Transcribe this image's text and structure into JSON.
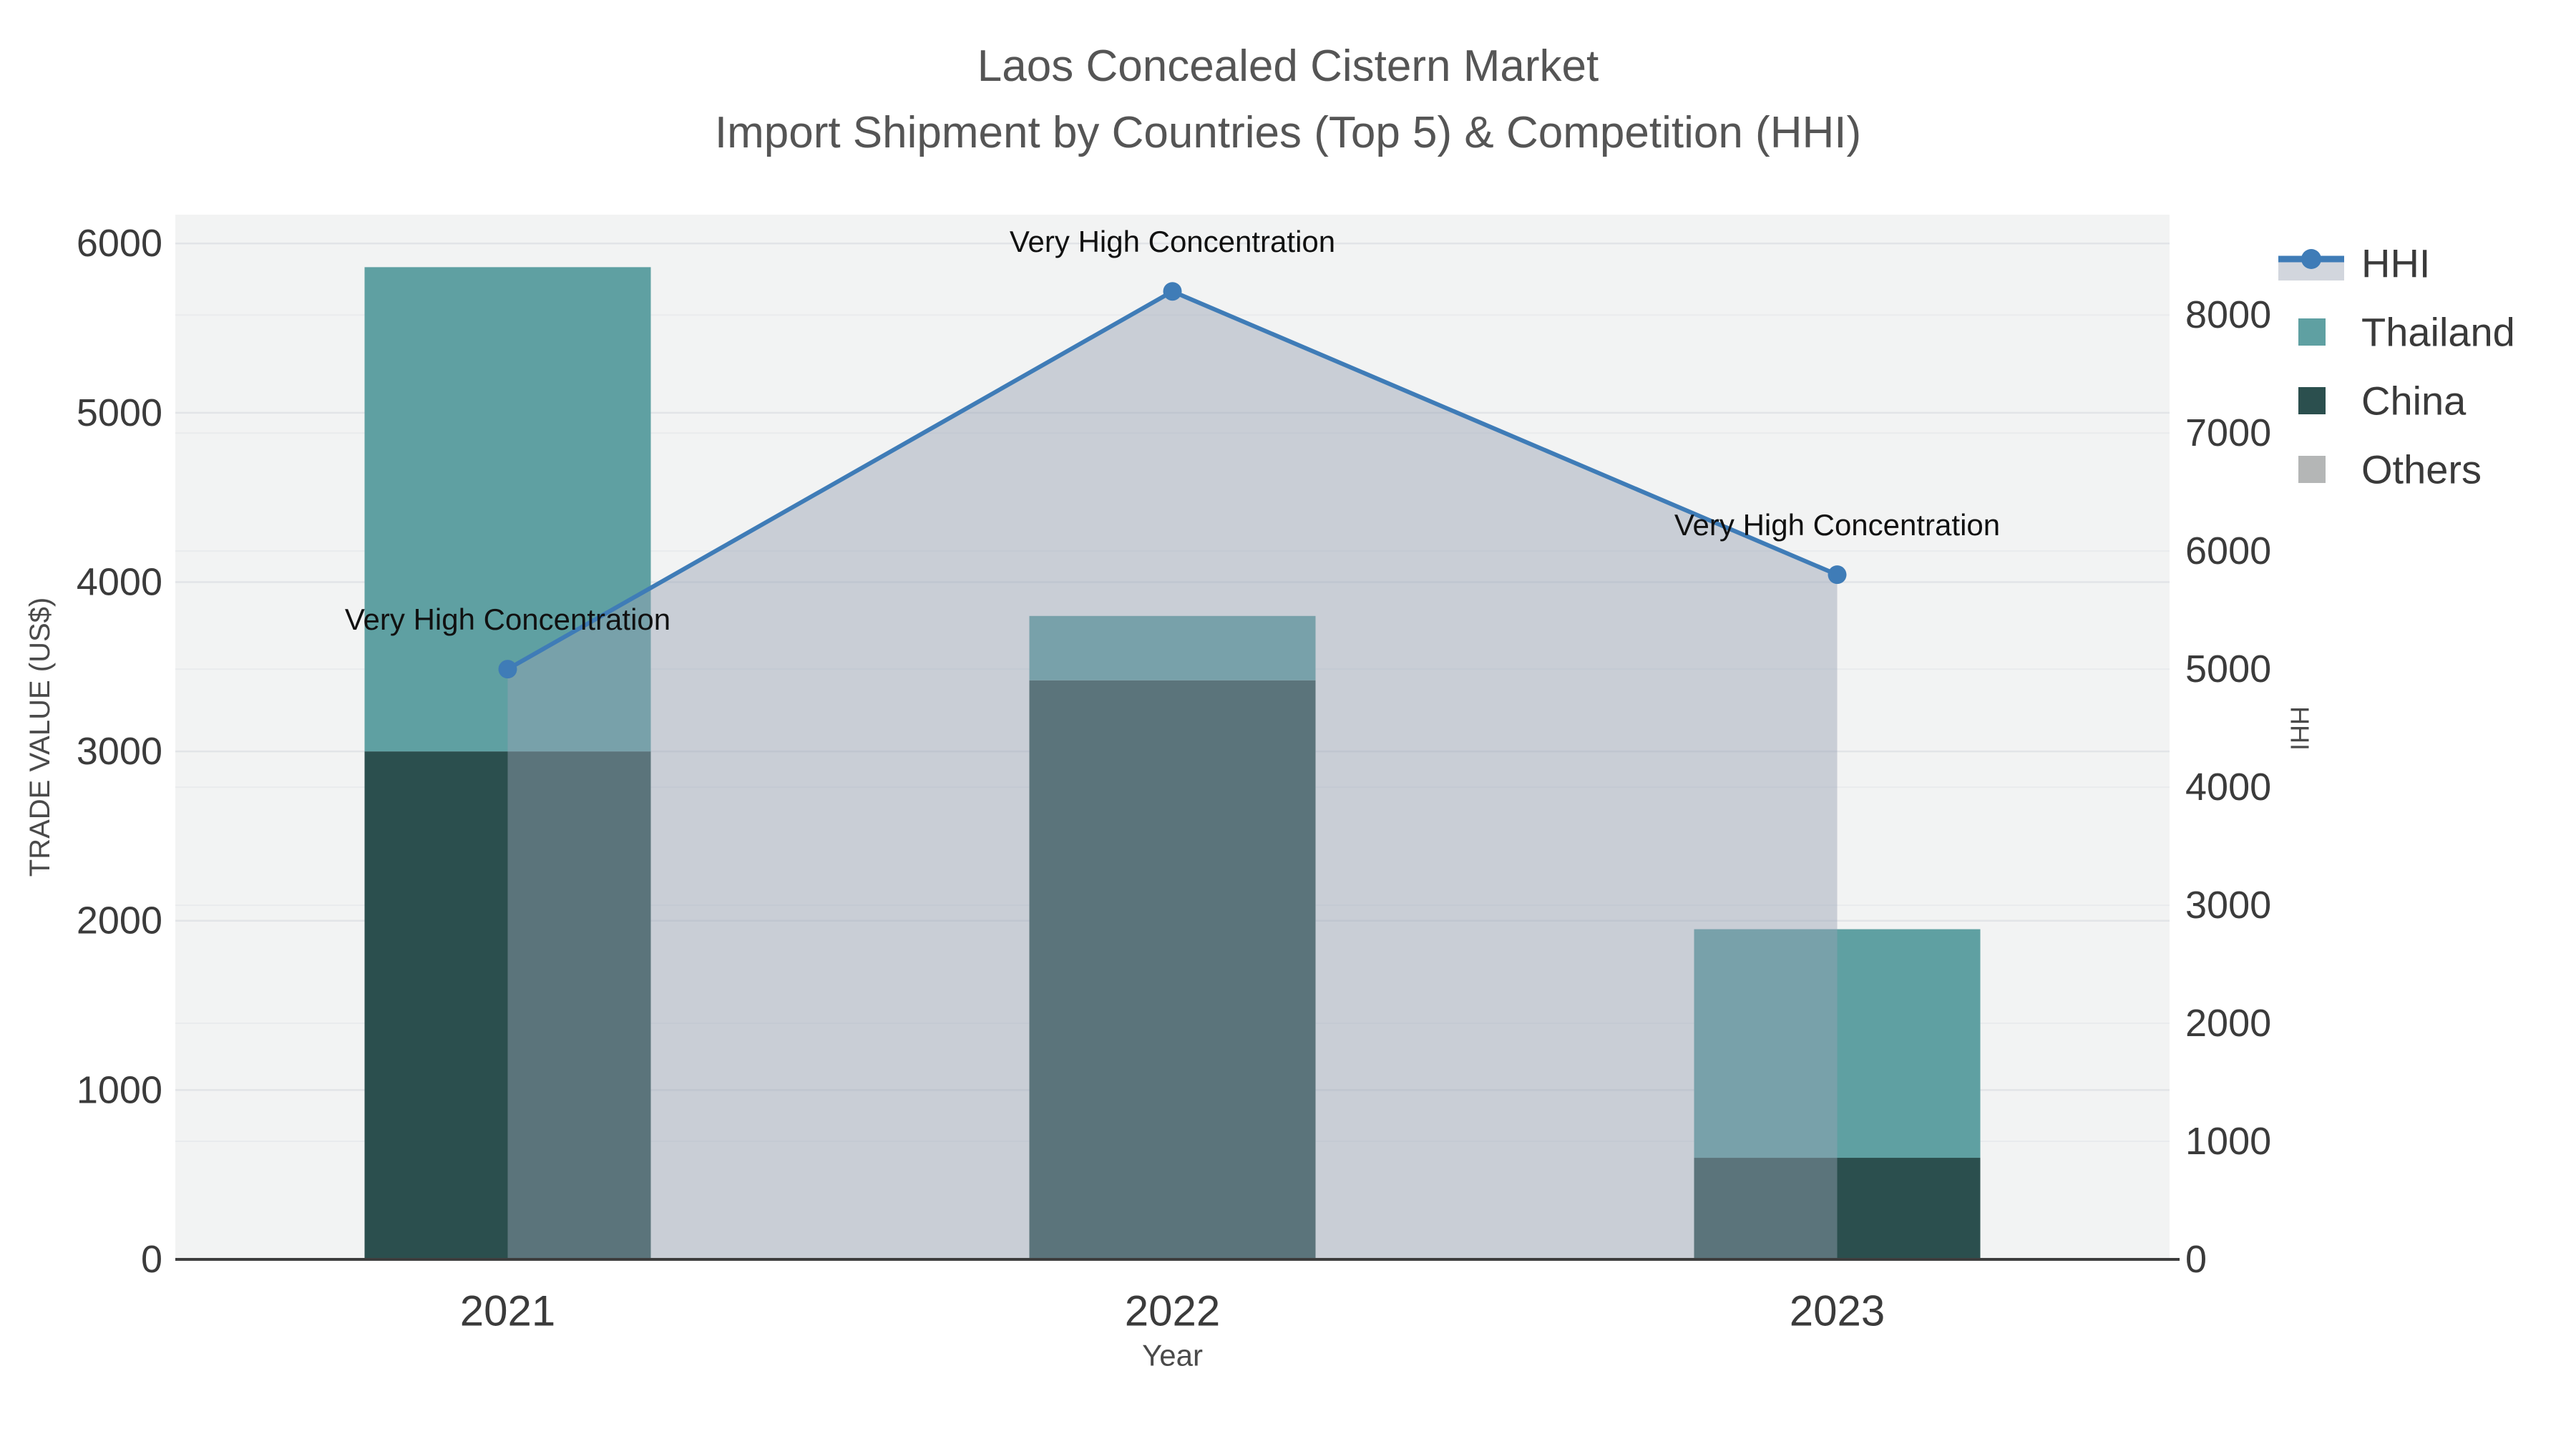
{
  "title": {
    "line1": "Laos Concealed Cistern Market",
    "line2": "Import Shipment by Countries (Top 5) & Competition (HHI)"
  },
  "chart_data": {
    "type": "bar",
    "subtype": "stacked-bars-with-secondary-axis-line-area",
    "categories": [
      "2021",
      "2022",
      "2023"
    ],
    "xlabel": "Year",
    "left_axis": {
      "label": "TRADE VALUE (US$)",
      "min": 0,
      "max": 6170,
      "ticks": [
        0,
        1000,
        2000,
        3000,
        4000,
        5000,
        6000
      ]
    },
    "right_axis": {
      "label": "HHI",
      "min": 0,
      "max": 8850,
      "ticks": [
        0,
        1000,
        2000,
        3000,
        4000,
        5000,
        6000,
        7000,
        8000
      ]
    },
    "series": [
      {
        "name": "Thailand",
        "type": "bar",
        "axis": "left",
        "values": [
          2860,
          380,
          1350
        ],
        "color": "#5FA0A2"
      },
      {
        "name": "China",
        "type": "bar",
        "axis": "left",
        "values": [
          3000,
          3420,
          600
        ],
        "color": "#2B4F4E"
      },
      {
        "name": "Others",
        "type": "bar",
        "axis": "left",
        "values": [
          0,
          0,
          0
        ],
        "color": "#B4B6B6"
      },
      {
        "name": "HHI",
        "type": "line-area",
        "axis": "right",
        "values": [
          5000,
          8200,
          5800
        ],
        "line_color": "#3F7CB7",
        "marker_color": "#3F7CB7",
        "area_color": "rgba(150,162,180,0.45)"
      }
    ],
    "stack_order_bottom_to_top": [
      "China",
      "Thailand",
      "Others"
    ],
    "annotations": [
      {
        "text": "Very High Concentration",
        "category": "2021",
        "series": "HHI"
      },
      {
        "text": "Very High Concentration",
        "category": "2022",
        "series": "HHI"
      },
      {
        "text": "Very High Concentration",
        "category": "2023",
        "series": "HHI"
      }
    ],
    "legend": {
      "position": "top-right",
      "items": [
        "HHI",
        "Thailand",
        "China",
        "Others"
      ]
    },
    "grid": "on",
    "colors": {
      "page_bg": "#ffffff",
      "plot_bg": "#f2f3f3",
      "grid_left": "#e2e4e7",
      "grid_right": "#e9ebed",
      "axis_line": "#3d3d3d",
      "tick_text": "#3b3b3b",
      "title_text": "#555555",
      "axis_title_text": "#4a4a4a",
      "annotation_text": "#111111",
      "legend_text": "#3a3a3a",
      "hhi_legend_band": "#D2D6DD"
    }
  }
}
